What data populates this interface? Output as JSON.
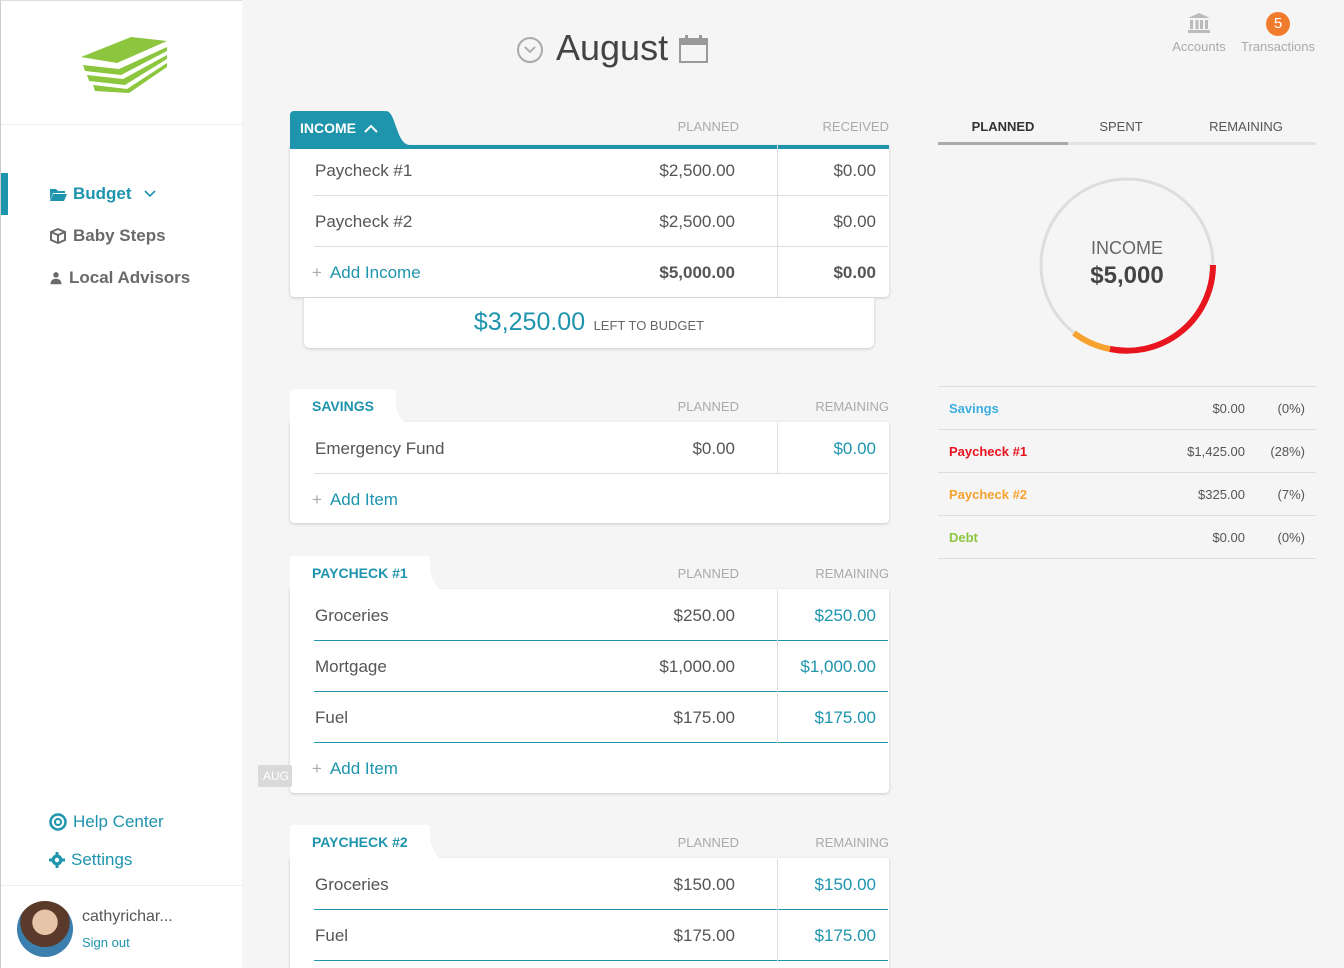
{
  "sidebar": {
    "nav": [
      {
        "label": "Budget",
        "icon": "folder-open-icon"
      },
      {
        "label": "Baby Steps",
        "icon": "cube-icon"
      },
      {
        "label": "Local Advisors",
        "icon": "user-icon"
      }
    ],
    "help_label": "Help Center",
    "settings_label": "Settings",
    "username": "cathyrichar...",
    "signout_label": "Sign out"
  },
  "header": {
    "month": "August",
    "accounts_label": "Accounts",
    "transactions_label": "Transactions",
    "transactions_count": "5"
  },
  "income": {
    "tab_label": "INCOME",
    "col_planned": "PLANNED",
    "col_received": "RECEIVED",
    "rows": [
      {
        "name": "Paycheck #1",
        "planned": "$2,500.00",
        "received": "$0.00"
      },
      {
        "name": "Paycheck #2",
        "planned": "$2,500.00",
        "received": "$0.00"
      }
    ],
    "add_label": "Add Income",
    "total_planned": "$5,000.00",
    "total_received": "$0.00",
    "left_amount": "$3,250.00",
    "left_label": "LEFT TO BUDGET"
  },
  "savings": {
    "tab_label": "SAVINGS",
    "col_planned": "PLANNED",
    "col_remaining": "REMAINING",
    "rows": [
      {
        "name": "Emergency Fund",
        "planned": "$0.00",
        "remaining": "$0.00"
      }
    ],
    "add_label": "Add Item"
  },
  "paycheck1": {
    "tab_label": "PAYCHECK #1",
    "col_planned": "PLANNED",
    "col_remaining": "REMAINING",
    "rows": [
      {
        "name": "Groceries",
        "planned": "$250.00",
        "remaining": "$250.00"
      },
      {
        "name": "Mortgage",
        "planned": "$1,000.00",
        "remaining": "$1,000.00"
      },
      {
        "name": "Fuel",
        "planned": "$175.00",
        "remaining": "$175.00"
      }
    ],
    "add_label": "Add Item",
    "side_tag": "AUG"
  },
  "paycheck2": {
    "tab_label": "PAYCHECK #2",
    "col_planned": "PLANNED",
    "col_remaining": "REMAINING",
    "rows": [
      {
        "name": "Groceries",
        "planned": "$150.00",
        "remaining": "$150.00"
      },
      {
        "name": "Fuel",
        "planned": "$175.00",
        "remaining": "$175.00"
      }
    ]
  },
  "summary": {
    "tabs": [
      "PLANNED",
      "SPENT",
      "REMAINING"
    ],
    "donut_label": "INCOME",
    "donut_value": "$5,000",
    "legend": [
      {
        "name": "Savings",
        "amount": "$0.00",
        "pct": "(0%)",
        "color": "#3aaee0"
      },
      {
        "name": "Paycheck #1",
        "amount": "$1,425.00",
        "pct": "(28%)",
        "color": "#e8141e"
      },
      {
        "name": "Paycheck #2",
        "amount": "$325.00",
        "pct": "(7%)",
        "color": "#f5a22e"
      },
      {
        "name": "Debt",
        "amount": "$0.00",
        "pct": "(0%)",
        "color": "#8cc63e"
      }
    ]
  }
}
